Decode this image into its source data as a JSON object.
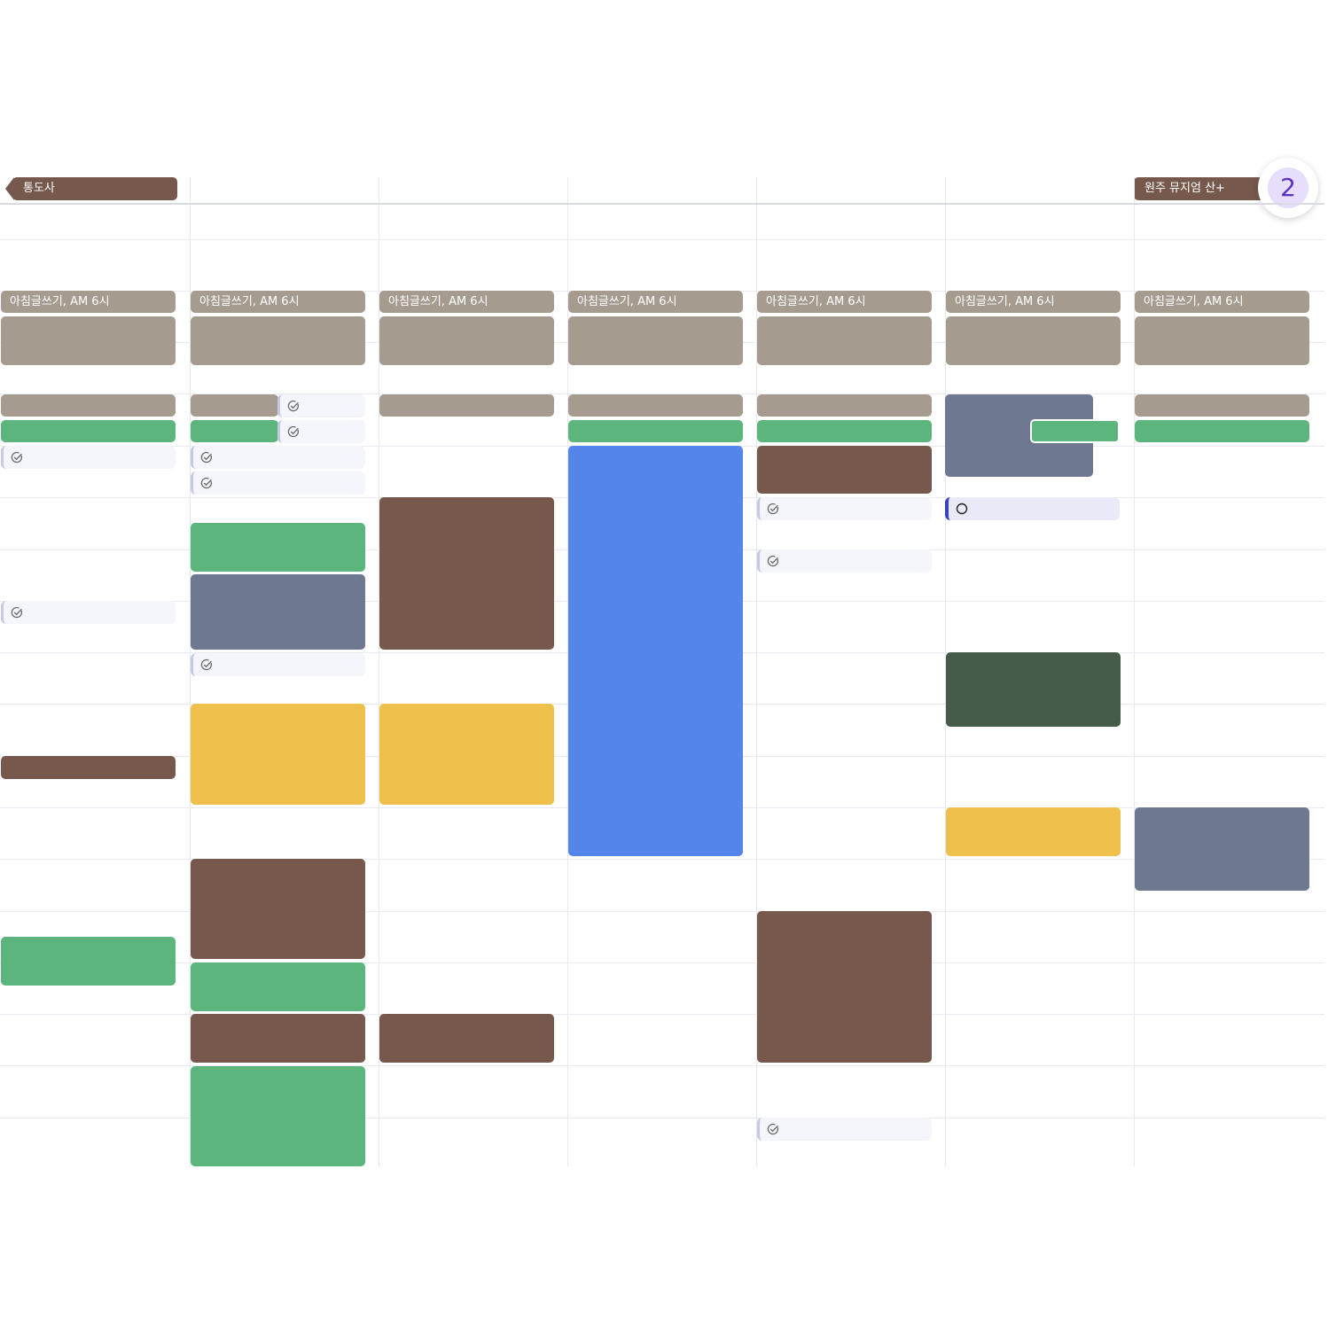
{
  "all_day": [
    {
      "label": "통도사",
      "color": "#76594c"
    },
    {
      "label": "원주 뮤지엄 산+",
      "color": "#76594c"
    }
  ],
  "overflow_badge": {
    "count": "2",
    "color": "#5a2fc4"
  },
  "recurring_label": "아침글쓰기, AM 6시",
  "colors": {
    "gray": "#a59c8f",
    "green": "#5cb57c",
    "brown": "#76594c",
    "slate": "#6e7891",
    "blue": "#5485ea",
    "yellow": "#efc04c",
    "darkgreen": "#465b48",
    "task_bg": "#f5f6fb",
    "task_bar": "#c5c8e6",
    "todo_bar": "#3a44c0"
  },
  "icons": {
    "task_done": "check-circle-icon",
    "task_open": "circle-icon"
  }
}
